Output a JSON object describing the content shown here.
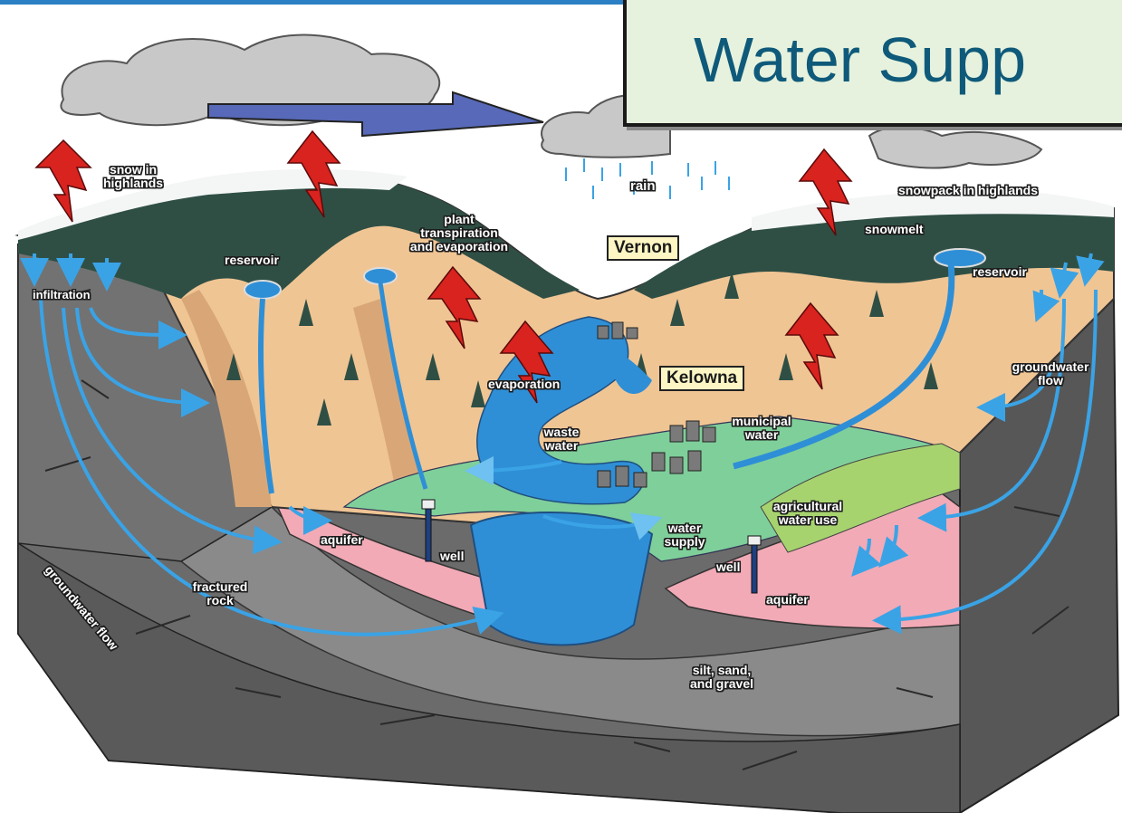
{
  "title": "Water Supp",
  "labels": {
    "snow_in_highlands": "snow in\nhighlands",
    "rain": "rain",
    "snowpack_in_highlands": "snowpack in highlands",
    "snowmelt": "snowmelt",
    "reservoir_left": "reservoir",
    "reservoir_right": "reservoir",
    "plant_transpiration": "plant\ntranspiration\nand evaporation",
    "infiltration": "infiltration",
    "evaporation": "evaporation",
    "waste_water": "waste\nwater",
    "municipal_water": "municipal\nwater",
    "groundwater_flow_right": "groundwater\nflow",
    "agricultural_water_use": "agricultural\nwater use",
    "water_supply": "water\nsupply",
    "aquifer_left": "aquifer",
    "aquifer_right": "aquifer",
    "well_left": "well",
    "well_right": "well",
    "fractured_rock": "fractured\nrock",
    "groundwater_flow_left": "groundwater flow",
    "silt_sand_gravel": "silt, sand,\nand gravel"
  },
  "cities": {
    "vernon": "Vernon",
    "kelowna": "Kelowna"
  },
  "colors": {
    "title_text": "#0f5a7a",
    "title_bg": "#e6f2dd",
    "water": "#2f8fd6",
    "flow_arrow": "#3aa3e6",
    "heat_arrow": "#d8231f",
    "rock": "#6b6b6b",
    "aquifer": "#f2aab6",
    "slope": "#f0c594",
    "forest": "#2f4f45",
    "valley_green": "#7fcf9a",
    "city_label_bg": "#fdf6c4"
  }
}
